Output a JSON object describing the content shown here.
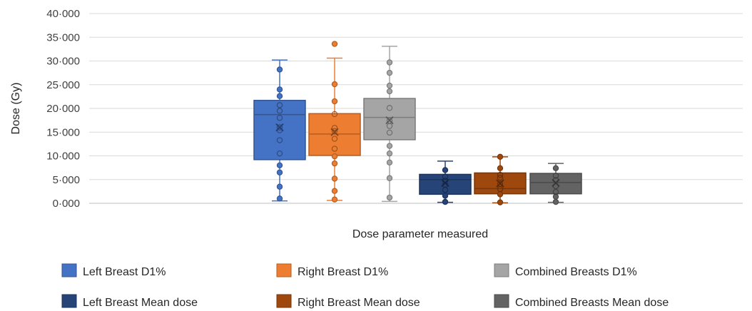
{
  "chart_data": {
    "type": "box",
    "ylabel": "Dose (Gy)",
    "xlabel": "Dose parameter measured",
    "ylim": [
      0,
      40
    ],
    "y_ticks": [
      {
        "value": 0,
        "label": "0·000"
      },
      {
        "value": 5,
        "label": "5·000"
      },
      {
        "value": 10,
        "label": "10·000"
      },
      {
        "value": 15,
        "label": "15·000"
      },
      {
        "value": 20,
        "label": "20·000"
      },
      {
        "value": 25,
        "label": "25·000"
      },
      {
        "value": 30,
        "label": "30·000"
      },
      {
        "value": 35,
        "label": "35·000"
      },
      {
        "value": 40,
        "label": "40·000"
      }
    ],
    "grid": true,
    "legend_position": "bottom",
    "series": [
      {
        "name": "Left Breast D1%",
        "color": "#4472C4",
        "min": 0.5,
        "q1": 9.2,
        "median": 18.7,
        "q3": 21.7,
        "max": 30.2,
        "mean": 16.0,
        "points": [
          1.0,
          3.5,
          6.5,
          8.0,
          10.5,
          13.3,
          15.4,
          16.0,
          18.0,
          19.5,
          20.7,
          22.6,
          24.0,
          28.2
        ]
      },
      {
        "name": "Right Breast D1%",
        "color": "#ED7D31",
        "min": 0.6,
        "q1": 10.1,
        "median": 14.6,
        "q3": 18.9,
        "max": 30.6,
        "mean": 15.0,
        "points": [
          0.8,
          2.6,
          5.2,
          8.4,
          9.9,
          11.5,
          13.6,
          15.2,
          15.9,
          18.8,
          21.5,
          25.1,
          33.6
        ]
      },
      {
        "name": "Combined Breasts D1%",
        "color": "#A5A5A5",
        "min": 0.4,
        "q1": 13.4,
        "median": 18.1,
        "q3": 22.1,
        "max": 33.1,
        "mean": 17.5,
        "points": [
          1.2,
          5.3,
          8.6,
          10.5,
          12.1,
          14.9,
          16.3,
          17.4,
          20.1,
          23.6,
          24.8,
          27.5,
          29.7
        ]
      },
      {
        "name": "Left Breast Mean dose",
        "color": "#264478",
        "min": 0.2,
        "q1": 1.9,
        "median": 5.0,
        "q3": 6.1,
        "max": 8.9,
        "mean": 4.3,
        "points": [
          0.3,
          1.6,
          2.8,
          3.9,
          4.8,
          5.6,
          7.0
        ]
      },
      {
        "name": "Right  Breast Mean dose",
        "color": "#9E480E",
        "min": 0.1,
        "q1": 2.0,
        "median": 3.1,
        "q3": 6.4,
        "max": 9.8,
        "mean": 4.2,
        "points": [
          0.2,
          1.9,
          3.0,
          4.1,
          5.4,
          6.0,
          7.4,
          9.8
        ]
      },
      {
        "name": "Combined Breasts Mean dose",
        "color": "#636363",
        "min": 0.2,
        "q1": 2.0,
        "median": 4.4,
        "q3": 6.3,
        "max": 8.4,
        "mean": 4.3,
        "points": [
          0.3,
          1.4,
          2.4,
          3.6,
          4.9,
          5.8,
          7.4
        ]
      }
    ]
  }
}
